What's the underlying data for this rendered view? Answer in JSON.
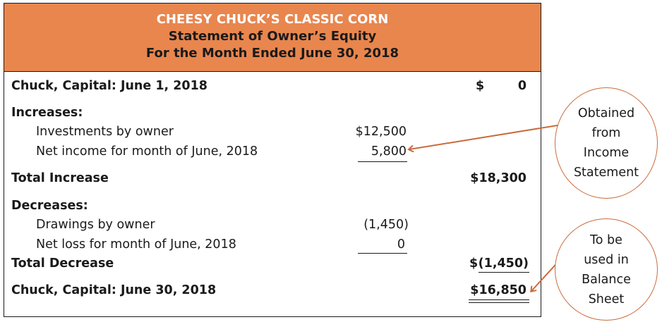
{
  "header": {
    "company": "CHEESY CHUCK’S CLASSIC CORN",
    "title": "Statement of Owner’s Equity",
    "period": "For the Month Ended June 30, 2018"
  },
  "rows": {
    "opening_label": "Chuck, Capital: June 1, 2018",
    "opening_currency": "$",
    "opening_value": "0",
    "increases_label": "Increases:",
    "investments_label": "Investments by owner",
    "investments_value": "$12,500",
    "net_income_label": "Net income for month of June, 2018",
    "net_income_value": "5,800",
    "total_increase_label": "Total Increase",
    "total_increase_value": "$18,300",
    "decreases_label": "Decreases:",
    "drawings_label": "Drawings by owner",
    "drawings_value": "(1,450)",
    "net_loss_label": "Net loss for month of June, 2018",
    "net_loss_value": "0",
    "total_decrease_label": "Total Decrease",
    "total_decrease_currency": "$",
    "total_decrease_value": "(1,450)",
    "closing_label": "Chuck, Capital: June 30, 2018",
    "closing_value": "$16,850"
  },
  "callouts": {
    "income_statement": [
      "Obtained",
      "from",
      "Income",
      "Statement"
    ],
    "balance_sheet": [
      "To be",
      "used in",
      "Balance",
      "Sheet"
    ]
  },
  "colors": {
    "header_fill": "#e8864e",
    "callout_stroke": "#c96b3c"
  }
}
